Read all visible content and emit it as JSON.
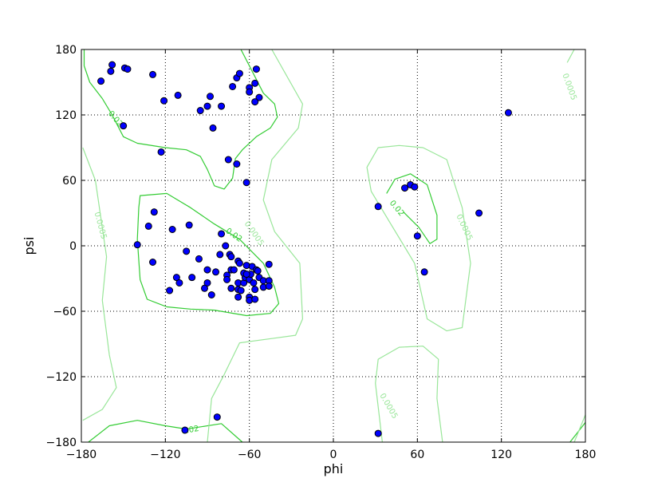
{
  "chart_data": {
    "type": "scatter",
    "title": "",
    "xlabel": "phi",
    "ylabel": "psi",
    "xlim": [
      -180,
      180
    ],
    "ylim": [
      -180,
      180
    ],
    "xticks": [
      -180,
      -120,
      -60,
      0,
      60,
      120,
      180
    ],
    "yticks": [
      -180,
      -120,
      -60,
      0,
      60,
      120,
      180
    ],
    "xtick_labels": [
      "−180",
      "−120",
      "−60",
      "0",
      "60",
      "120",
      "180"
    ],
    "ytick_labels": [
      "−180",
      "−120",
      "−60",
      "0",
      "60",
      "120",
      "180"
    ],
    "grid": true,
    "colors": {
      "points": "#0000ff",
      "contour_high": "#33cc33",
      "contour_low": "#99e699"
    },
    "points": [
      [
        -166,
        151
      ],
      [
        -159,
        160
      ],
      [
        -158,
        166
      ],
      [
        -149,
        163
      ],
      [
        -147,
        162
      ],
      [
        -129,
        157
      ],
      [
        -121,
        133
      ],
      [
        -111,
        138
      ],
      [
        -88,
        137
      ],
      [
        -90,
        128
      ],
      [
        -95,
        124
      ],
      [
        -80,
        128
      ],
      [
        -86,
        108
      ],
      [
        -150,
        110
      ],
      [
        -123,
        86
      ],
      [
        -75,
        79
      ],
      [
        -69,
        75
      ],
      [
        -62,
        58
      ],
      [
        -72,
        146
      ],
      [
        -69,
        154
      ],
      [
        -67,
        158
      ],
      [
        -55,
        162
      ],
      [
        -56,
        149
      ],
      [
        -60,
        145
      ],
      [
        -60,
        141
      ],
      [
        -53,
        136
      ],
      [
        -56,
        132
      ],
      [
        -140,
        1
      ],
      [
        -132,
        18
      ],
      [
        -128,
        31
      ],
      [
        -129,
        -15
      ],
      [
        -115,
        15
      ],
      [
        -103,
        19
      ],
      [
        -105,
        -5
      ],
      [
        -112,
        -29
      ],
      [
        -110,
        -34
      ],
      [
        -117,
        -41
      ],
      [
        -101,
        -29
      ],
      [
        -96,
        -12
      ],
      [
        -90,
        -22
      ],
      [
        -90,
        -34
      ],
      [
        -92,
        -39
      ],
      [
        -87,
        -45
      ],
      [
        -84,
        -24
      ],
      [
        -81,
        -8
      ],
      [
        -80,
        11
      ],
      [
        -77,
        0
      ],
      [
        -74,
        -8
      ],
      [
        -73,
        -10
      ],
      [
        -76,
        -27
      ],
      [
        -76,
        -31
      ],
      [
        -73,
        -22
      ],
      [
        -71,
        -22
      ],
      [
        -73,
        -39
      ],
      [
        -68,
        -14
      ],
      [
        -67,
        -16
      ],
      [
        -68,
        -34
      ],
      [
        -68,
        -40
      ],
      [
        -68,
        -47
      ],
      [
        -66,
        -41
      ],
      [
        -64,
        -34
      ],
      [
        -63,
        -29
      ],
      [
        -62,
        -18
      ],
      [
        -60,
        -47
      ],
      [
        -60,
        -50
      ],
      [
        -60,
        -31
      ],
      [
        -59,
        -26
      ],
      [
        -58,
        -19
      ],
      [
        -57,
        -34
      ],
      [
        -56,
        -40
      ],
      [
        -56,
        -49
      ],
      [
        -55,
        -22
      ],
      [
        -54,
        -23
      ],
      [
        -53,
        -29
      ],
      [
        -50,
        -32
      ],
      [
        -50,
        -38
      ],
      [
        -46,
        -17
      ],
      [
        -46,
        -32
      ],
      [
        -46,
        -37
      ],
      [
        -64,
        -25
      ],
      [
        -62,
        -26
      ],
      [
        -106,
        -169
      ],
      [
        -83,
        -157
      ],
      [
        32,
        36
      ],
      [
        32,
        -172
      ],
      [
        51,
        53
      ],
      [
        55,
        56
      ],
      [
        58,
        54
      ],
      [
        60,
        9
      ],
      [
        65,
        -24
      ],
      [
        104,
        30
      ],
      [
        125,
        122
      ]
    ],
    "contours": [
      {
        "level": "0.02",
        "closed": false,
        "path": [
          [
            -178,
            180
          ],
          [
            -178,
            165
          ],
          [
            -174,
            150
          ],
          [
            -165,
            135
          ],
          [
            -158,
            120
          ],
          [
            -150,
            100
          ],
          [
            -140,
            94
          ],
          [
            -120,
            90
          ],
          [
            -105,
            88
          ],
          [
            -95,
            82
          ],
          [
            -90,
            70
          ],
          [
            -85,
            55
          ],
          [
            -78,
            52
          ],
          [
            -72,
            62
          ],
          [
            -70,
            80
          ],
          [
            -65,
            88
          ],
          [
            -55,
            100
          ],
          [
            -45,
            108
          ],
          [
            -40,
            118
          ],
          [
            -42,
            130
          ],
          [
            -50,
            140
          ],
          [
            -58,
            160
          ],
          [
            -66,
            180
          ]
        ]
      },
      {
        "level": "0.02",
        "closed": true,
        "path": [
          [
            -138,
            46
          ],
          [
            -119,
            48
          ],
          [
            -102,
            35
          ],
          [
            -85,
            20
          ],
          [
            -67,
            6
          ],
          [
            -50,
            -16
          ],
          [
            -42,
            -38
          ],
          [
            -39,
            -53
          ],
          [
            -45,
            -62
          ],
          [
            -62,
            -64
          ],
          [
            -85,
            -59
          ],
          [
            -102,
            -58
          ],
          [
            -119,
            -56
          ],
          [
            -133,
            -49
          ],
          [
            -138,
            -31
          ],
          [
            -140,
            6
          ],
          [
            -139,
            35
          ]
        ]
      },
      {
        "level": "0.02",
        "closed": false,
        "path": [
          [
            38,
            48
          ],
          [
            44,
            61
          ],
          [
            55,
            66
          ],
          [
            67,
            56
          ],
          [
            74,
            28
          ],
          [
            74,
            6
          ],
          [
            69,
            2
          ],
          [
            61,
            17
          ],
          [
            50,
            31
          ]
        ]
      },
      {
        "level": "0.02",
        "closed": false,
        "path": [
          [
            -175,
            -180
          ],
          [
            -160,
            -165
          ],
          [
            -140,
            -160
          ],
          [
            -120,
            -165
          ],
          [
            -105,
            -168
          ],
          [
            -80,
            -163
          ],
          [
            -65,
            -180
          ]
        ]
      },
      {
        "level": "0.02",
        "closed": false,
        "path": [
          [
            180,
            -162
          ],
          [
            169,
            -180
          ]
        ]
      },
      {
        "level": "0.0005",
        "closed": false,
        "path": [
          [
            -179,
            90
          ],
          [
            -170,
            60
          ],
          [
            -166,
            25
          ],
          [
            -162,
            -10
          ],
          [
            -165,
            -50
          ],
          [
            -160,
            -100
          ],
          [
            -155,
            -130
          ],
          [
            -165,
            -150
          ],
          [
            -179,
            -160
          ]
        ]
      },
      {
        "level": "0.0005",
        "closed": false,
        "path": [
          [
            -44,
            180
          ],
          [
            -22,
            130
          ],
          [
            -25,
            108
          ],
          [
            -44,
            79
          ],
          [
            -50,
            42
          ],
          [
            -42,
            13
          ],
          [
            -24,
            -16
          ],
          [
            -22,
            -67
          ],
          [
            -27,
            -82
          ],
          [
            -44,
            -85
          ],
          [
            -67,
            -89
          ],
          [
            -78,
            -118
          ],
          [
            -87,
            -140
          ],
          [
            -90,
            -180
          ]
        ]
      },
      {
        "level": "0.0005",
        "closed": true,
        "path": [
          [
            32,
            90
          ],
          [
            24,
            72
          ],
          [
            27,
            50
          ],
          [
            41,
            20
          ],
          [
            58,
            -16
          ],
          [
            67,
            -67
          ],
          [
            81,
            -78
          ],
          [
            92,
            -75
          ],
          [
            98,
            -16
          ],
          [
            92,
            35
          ],
          [
            81,
            79
          ],
          [
            64,
            90
          ],
          [
            47,
            92
          ]
        ]
      },
      {
        "level": "0.0005",
        "closed": false,
        "path": [
          [
            35,
            -180
          ],
          [
            30,
            -126
          ],
          [
            32,
            -104
          ],
          [
            47,
            -93
          ],
          [
            64,
            -92
          ],
          [
            75,
            -104
          ],
          [
            74,
            -140
          ],
          [
            78,
            -180
          ]
        ]
      },
      {
        "level": "0.0005",
        "closed": false,
        "path": [
          [
            167,
            168
          ],
          [
            172,
            180
          ]
        ]
      },
      {
        "level": "0.0005",
        "closed": false,
        "path": [
          [
            172,
            -180
          ],
          [
            180,
            -155
          ]
        ]
      }
    ],
    "contour_labels": [
      {
        "text": "0.02",
        "at": [
          -157,
          115
        ],
        "rot": 50,
        "level": "0.02"
      },
      {
        "text": "0.02",
        "at": [
          -72,
          8
        ],
        "rot": 35,
        "level": "0.02"
      },
      {
        "text": "0.02",
        "at": [
          44,
          33
        ],
        "rot": 50,
        "level": "0.02"
      },
      {
        "text": "0.02",
        "at": [
          -102,
          -171
        ],
        "rot": -10,
        "level": "0.02"
      },
      {
        "text": "0.0005",
        "at": [
          -168,
          18
        ],
        "rot": 75,
        "level": "0.0005"
      },
      {
        "text": "0.0005",
        "at": [
          -58,
          10
        ],
        "rot": 55,
        "level": "0.0005"
      },
      {
        "text": "0.0005",
        "at": [
          92,
          16
        ],
        "rot": 65,
        "level": "0.0005"
      },
      {
        "text": "0.0005",
        "at": [
          38,
          -148
        ],
        "rot": 60,
        "level": "0.0005"
      },
      {
        "text": "0.0005",
        "at": [
          167,
          145
        ],
        "rot": 70,
        "level": "0.0005"
      }
    ]
  }
}
